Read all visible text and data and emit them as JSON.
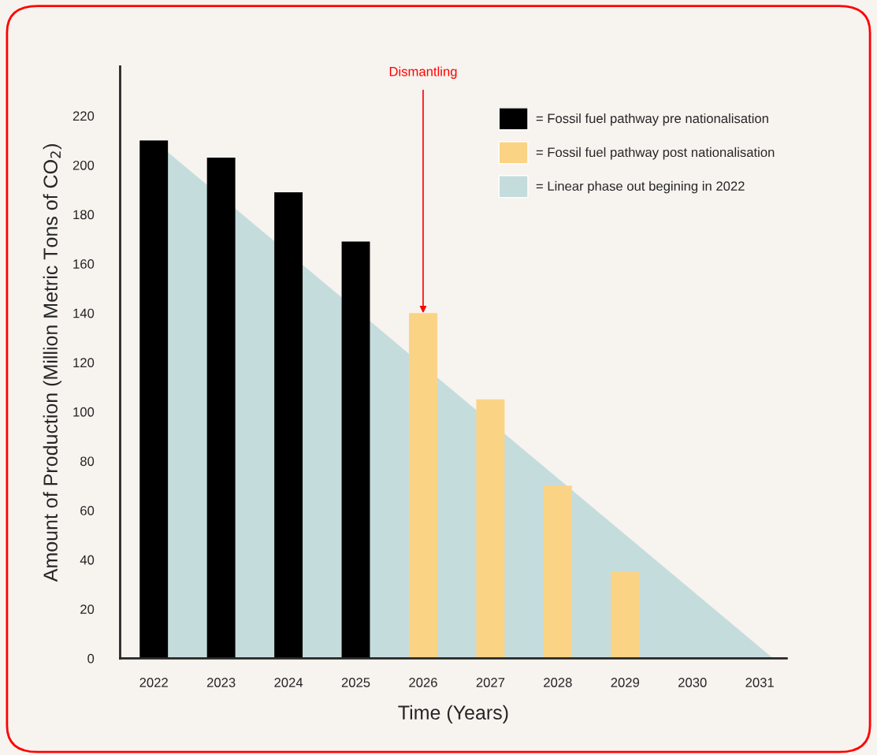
{
  "chart_data": {
    "type": "bar",
    "xlabel": "Time (Years)",
    "ylabel": "Amount of Production (Million Metric Tons of CO$_{2}$)",
    "x": [
      2022,
      2023,
      2024,
      2025,
      2026,
      2027,
      2028,
      2029
    ],
    "series": [
      {
        "name": "= Linear phase out begining in 2022",
        "type": "area",
        "color": "#c5dcdd",
        "x": [
          2022,
          2031.2
        ],
        "values": [
          210,
          0
        ]
      },
      {
        "name": "= Fossil fuel pathway pre nationalisation",
        "color": "#000000",
        "values": [
          210,
          203,
          189,
          169,
          null,
          null,
          null,
          null
        ]
      },
      {
        "name": "= Fossil fuel pathway post nationalisation",
        "color": "#fbd384",
        "values": [
          null,
          null,
          null,
          null,
          140,
          105,
          70,
          35
        ]
      }
    ],
    "annotations": [
      {
        "text": "Dismantling",
        "x": 2026,
        "y": 140
      }
    ],
    "xlim": [
      2021.5,
      2031.4
    ],
    "xticks": [
      2022,
      2023,
      2024,
      2025,
      2026,
      2027,
      2028,
      2029,
      2030,
      2031
    ],
    "ylim": [
      0,
      240
    ],
    "yticks": [
      0,
      20,
      40,
      60,
      80,
      100,
      120,
      140,
      160,
      180,
      200,
      220
    ],
    "grid": false,
    "legend": "top right"
  }
}
